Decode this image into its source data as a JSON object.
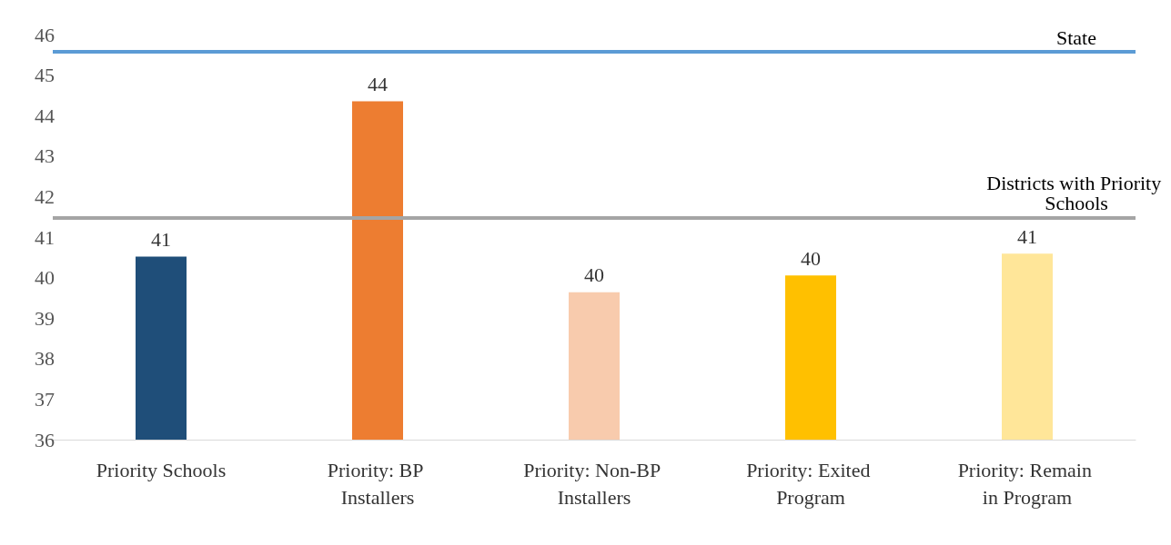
{
  "chart_data": {
    "type": "bar",
    "categories": [
      "Priority Schools",
      "Priority: BP Installers",
      "Priority: Non-BP Installers",
      "Priority: Exited Program",
      "Priority: Remain in Program"
    ],
    "values": [
      40.52,
      44.35,
      39.64,
      40.05,
      40.59
    ],
    "colors": [
      "#1f4e79",
      "#ed7d31",
      "#f8cbad",
      "#ffc000",
      "#ffe699"
    ],
    "value_labels": [
      "41",
      "44",
      "40",
      "40",
      "41"
    ],
    "ylim": [
      36,
      46
    ],
    "yticks": [
      36,
      37,
      38,
      39,
      40,
      41,
      42,
      43,
      44,
      45,
      46
    ],
    "grid": false,
    "ref_lines": [
      {
        "axis": "y",
        "value": 45.57,
        "label": "State",
        "color": "#5b9bd5"
      },
      {
        "axis": "y",
        "value": 41.48,
        "label": "Districts with Priority Schools",
        "color": "#a5a5a5"
      }
    ]
  }
}
